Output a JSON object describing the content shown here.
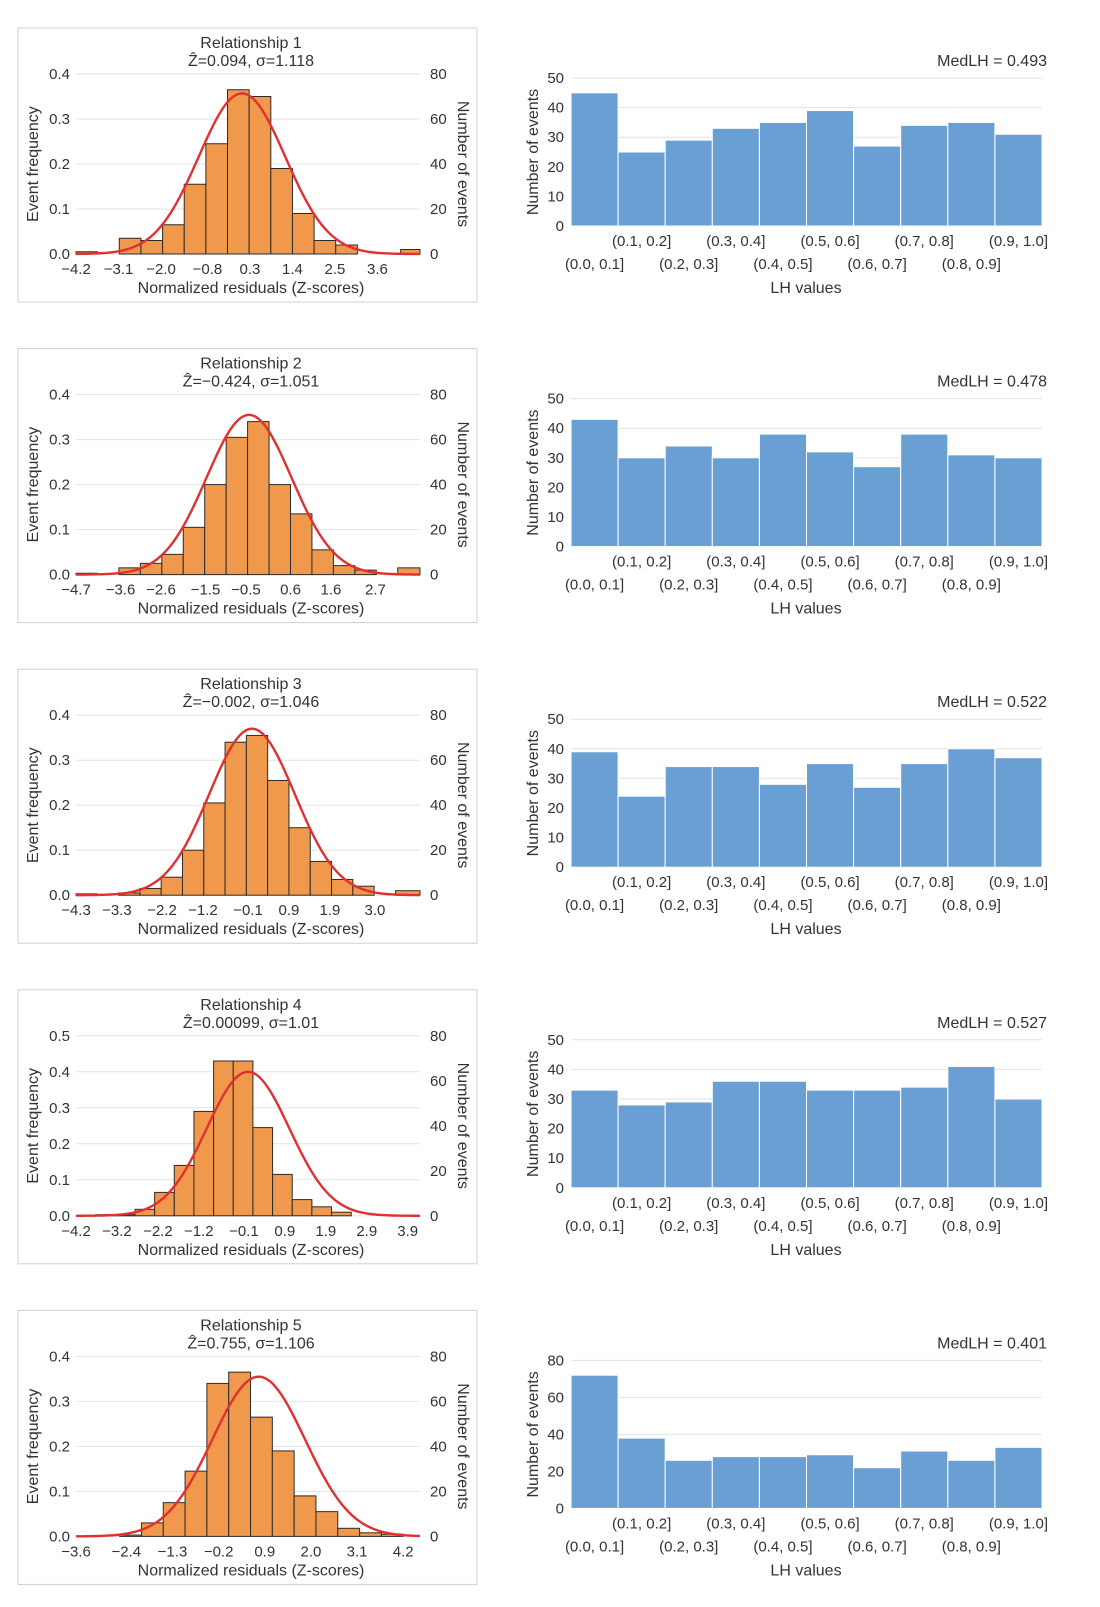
{
  "chart_data": [
    {
      "type": "bar",
      "title": "Relationship 1",
      "subtitle": "Ẑ=0.094, σ=1.118",
      "xlabel": "Normalized residuals (Z-scores)",
      "ylabel": "Event frequency",
      "y2label": "Number of events",
      "x_ticks": [
        "−4.2",
        "−3.1",
        "−2.0",
        "−0.8",
        "0.3",
        "1.4",
        "2.5",
        "3.6"
      ],
      "xlim": [
        -4.2,
        4.7
      ],
      "ylim": [
        0,
        0.4
      ],
      "y_ticks": [
        "0.0",
        "0.1",
        "0.2",
        "0.3",
        "0.4"
      ],
      "y2lim": [
        0,
        80
      ],
      "y2_ticks": [
        "0",
        "20",
        "40",
        "60",
        "80"
      ],
      "bin_edges": [
        -4.2,
        -3.64,
        -3.08,
        -2.52,
        -1.96,
        -1.4,
        -0.84,
        -0.28,
        0.28,
        0.84,
        1.4,
        1.96,
        2.52,
        3.08,
        3.64,
        4.2,
        4.7
      ],
      "values": [
        0.005,
        0.0,
        0.035,
        0.03,
        0.065,
        0.155,
        0.245,
        0.365,
        0.35,
        0.19,
        0.09,
        0.03,
        0.02,
        0.0,
        0.0,
        0.01
      ],
      "fit": {
        "mean": 0.094,
        "sd": 1.118,
        "peak": 0.357
      },
      "grid": true
    },
    {
      "type": "bar",
      "title": "",
      "annotation": "MedLH = 0.493",
      "xlabel": "LH values",
      "ylabel": "Number of events",
      "categories": [
        "(0.0, 0.1]",
        "(0.1, 0.2]",
        "(0.2, 0.3]",
        "(0.3, 0.4]",
        "(0.4, 0.5]",
        "(0.5, 0.6]",
        "(0.6, 0.7]",
        "(0.7, 0.8]",
        "(0.8, 0.9]",
        "(0.9, 1.0]"
      ],
      "values": [
        45,
        25,
        29,
        33,
        35,
        39,
        27,
        34,
        35,
        31
      ],
      "ylim": [
        0,
        50
      ],
      "y_ticks": [
        "0",
        "10",
        "20",
        "30",
        "40",
        "50"
      ],
      "grid": true
    },
    {
      "type": "bar",
      "title": "Relationship 2",
      "subtitle": "Ẑ=−0.424, σ=1.051",
      "xlabel": "Normalized residuals (Z-scores)",
      "ylabel": "Event frequency",
      "y2label": "Number of events",
      "x_ticks": [
        "−4.7",
        "−3.6",
        "−2.6",
        "−1.5",
        "−0.5",
        "0.6",
        "1.6",
        "2.7"
      ],
      "xlim": [
        -4.7,
        3.8
      ],
      "ylim": [
        0,
        0.4
      ],
      "y_ticks": [
        "0.0",
        "0.1",
        "0.2",
        "0.3",
        "0.4"
      ],
      "y2lim": [
        0,
        80
      ],
      "y2_ticks": [
        "0",
        "20",
        "40",
        "60",
        "80"
      ],
      "bin_edges": [
        -4.7,
        -4.17,
        -3.64,
        -3.11,
        -2.58,
        -2.05,
        -1.52,
        -0.99,
        -0.46,
        0.07,
        0.6,
        1.13,
        1.66,
        2.19,
        2.72,
        3.25,
        3.8
      ],
      "values": [
        0.003,
        0.0,
        0.015,
        0.025,
        0.045,
        0.105,
        0.2,
        0.305,
        0.34,
        0.2,
        0.135,
        0.055,
        0.02,
        0.01,
        0.0,
        0.015
      ],
      "fit": {
        "mean": -0.424,
        "sd": 1.051,
        "peak": 0.355
      },
      "grid": true
    },
    {
      "type": "bar",
      "title": "",
      "annotation": "MedLH = 0.478",
      "xlabel": "LH values",
      "ylabel": "Number of events",
      "categories": [
        "(0.0, 0.1]",
        "(0.1, 0.2]",
        "(0.2, 0.3]",
        "(0.3, 0.4]",
        "(0.4, 0.5]",
        "(0.5, 0.6]",
        "(0.6, 0.7]",
        "(0.7, 0.8]",
        "(0.8, 0.9]",
        "(0.9, 1.0]"
      ],
      "values": [
        43,
        30,
        34,
        30,
        38,
        32,
        27,
        38,
        31,
        30
      ],
      "ylim": [
        0,
        50
      ],
      "y_ticks": [
        "0",
        "10",
        "20",
        "30",
        "40",
        "50"
      ],
      "grid": true
    },
    {
      "type": "bar",
      "title": "Relationship 3",
      "subtitle": "Ẑ=−0.002, σ=1.046",
      "xlabel": "Normalized residuals (Z-scores)",
      "ylabel": "Event frequency",
      "y2label": "Number of events",
      "x_ticks": [
        "−4.3",
        "−3.3",
        "−2.2",
        "−1.2",
        "−0.1",
        "0.9",
        "1.9",
        "3.0"
      ],
      "xlim": [
        -4.3,
        4.1
      ],
      "ylim": [
        0,
        0.4
      ],
      "y_ticks": [
        "0.0",
        "0.1",
        "0.2",
        "0.3",
        "0.4"
      ],
      "y2lim": [
        0,
        80
      ],
      "y2_ticks": [
        "0",
        "20",
        "40",
        "60",
        "80"
      ],
      "bin_edges": [
        -4.3,
        -3.78,
        -3.26,
        -2.74,
        -2.22,
        -1.7,
        -1.18,
        -0.66,
        -0.14,
        0.38,
        0.9,
        1.42,
        1.94,
        2.46,
        2.98,
        3.5,
        4.1
      ],
      "values": [
        0.003,
        0.0,
        0.005,
        0.015,
        0.04,
        0.1,
        0.205,
        0.34,
        0.355,
        0.255,
        0.15,
        0.075,
        0.035,
        0.02,
        0.0,
        0.01
      ],
      "fit": {
        "mean": -0.002,
        "sd": 1.046,
        "peak": 0.37
      },
      "grid": true
    },
    {
      "type": "bar",
      "title": "",
      "annotation": "MedLH = 0.522",
      "xlabel": "LH values",
      "ylabel": "Number of events",
      "categories": [
        "(0.0, 0.1]",
        "(0.1, 0.2]",
        "(0.2, 0.3]",
        "(0.3, 0.4]",
        "(0.4, 0.5]",
        "(0.5, 0.6]",
        "(0.6, 0.7]",
        "(0.7, 0.8]",
        "(0.8, 0.9]",
        "(0.9, 1.0]"
      ],
      "values": [
        39,
        24,
        34,
        34,
        28,
        35,
        27,
        35,
        40,
        37
      ],
      "ylim": [
        0,
        50
      ],
      "y_ticks": [
        "0",
        "10",
        "20",
        "30",
        "40",
        "50"
      ],
      "grid": true
    },
    {
      "type": "bar",
      "title": "Relationship 4",
      "subtitle": "Ẑ=0.00099, σ=1.01",
      "xlabel": "Normalized residuals (Z-scores)",
      "ylabel": "Event frequency",
      "y2label": "Number of events",
      "x_ticks": [
        "−4.2",
        "−3.2",
        "−2.2",
        "−1.2",
        "−0.1",
        "0.9",
        "1.9",
        "2.9",
        "3.9"
      ],
      "xlim": [
        -4.2,
        4.2
      ],
      "ylim": [
        0,
        0.5
      ],
      "y_ticks": [
        "0.0",
        "0.1",
        "0.2",
        "0.3",
        "0.4",
        "0.5"
      ],
      "y2lim": [
        0,
        80
      ],
      "y2_ticks": [
        "0",
        "20",
        "40",
        "60",
        "80"
      ],
      "bin_edges": [
        -4.2,
        -3.72,
        -3.24,
        -2.76,
        -2.28,
        -1.8,
        -1.32,
        -0.84,
        -0.36,
        0.12,
        0.6,
        1.08,
        1.56,
        2.04,
        2.52,
        3.0,
        3.48
      ],
      "values": [
        0.0,
        0.003,
        0.003,
        0.018,
        0.065,
        0.14,
        0.29,
        0.43,
        0.43,
        0.245,
        0.115,
        0.045,
        0.025,
        0.01,
        0.0,
        0.0
      ],
      "fit": {
        "mean": 0.00099,
        "sd": 1.01,
        "peak": 0.4
      },
      "grid": true
    },
    {
      "type": "bar",
      "title": "",
      "annotation": "MedLH = 0.527",
      "xlabel": "LH values",
      "ylabel": "Number of events",
      "categories": [
        "(0.0, 0.1]",
        "(0.1, 0.2]",
        "(0.2, 0.3]",
        "(0.3, 0.4]",
        "(0.4, 0.5]",
        "(0.5, 0.6]",
        "(0.6, 0.7]",
        "(0.7, 0.8]",
        "(0.8, 0.9]",
        "(0.9, 1.0]"
      ],
      "values": [
        33,
        28,
        29,
        36,
        36,
        33,
        33,
        34,
        41,
        30
      ],
      "ylim": [
        0,
        50
      ],
      "y_ticks": [
        "0",
        "10",
        "20",
        "30",
        "40",
        "50"
      ],
      "grid": true
    },
    {
      "type": "bar",
      "title": "Relationship 5",
      "subtitle": "Ẑ=0.755, σ=1.106",
      "xlabel": "Normalized residuals (Z-scores)",
      "ylabel": "Event frequency",
      "y2label": "Number of events",
      "x_ticks": [
        "−3.6",
        "−2.4",
        "−1.3",
        "−0.2",
        "0.9",
        "2.0",
        "3.1",
        "4.2"
      ],
      "xlim": [
        -3.6,
        4.6
      ],
      "ylim": [
        0,
        0.4
      ],
      "y_ticks": [
        "0.0",
        "0.1",
        "0.2",
        "0.3",
        "0.4"
      ],
      "y2lim": [
        0,
        80
      ],
      "y2_ticks": [
        "0",
        "20",
        "40",
        "60",
        "80"
      ],
      "bin_edges": [
        -3.6,
        -3.08,
        -2.56,
        -2.04,
        -1.52,
        -1.0,
        -0.48,
        0.04,
        0.56,
        1.08,
        1.6,
        2.12,
        2.64,
        3.16,
        3.68,
        4.2
      ],
      "values": [
        0.0,
        0.0,
        0.003,
        0.03,
        0.075,
        0.145,
        0.34,
        0.365,
        0.265,
        0.19,
        0.09,
        0.055,
        0.018,
        0.008,
        0.005
      ],
      "fit": {
        "mean": 0.755,
        "sd": 1.106,
        "peak": 0.355
      },
      "grid": true
    },
    {
      "type": "bar",
      "title": "",
      "annotation": "MedLH = 0.401",
      "xlabel": "LH values",
      "ylabel": "Number of events",
      "categories": [
        "(0.0, 0.1]",
        "(0.1, 0.2]",
        "(0.2, 0.3]",
        "(0.3, 0.4]",
        "(0.4, 0.5]",
        "(0.5, 0.6]",
        "(0.6, 0.7]",
        "(0.7, 0.8]",
        "(0.8, 0.9]",
        "(0.9, 1.0]"
      ],
      "values": [
        72,
        38,
        26,
        28,
        28,
        29,
        22,
        31,
        26,
        33
      ],
      "ylim": [
        0,
        80
      ],
      "y_ticks": [
        "0",
        "20",
        "40",
        "60",
        "80"
      ],
      "grid": true
    }
  ]
}
